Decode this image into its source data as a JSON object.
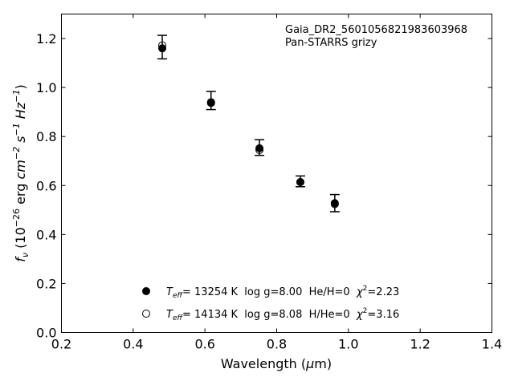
{
  "chart_data": {
    "type": "scatter",
    "xlabel": {
      "main": "Wavelength (",
      "mu": "μ",
      "unit": "m)"
    },
    "ylabel": {
      "f": "f",
      "nu": "ν",
      "pre": " (10",
      "e1": "−26",
      "mid": " erg ",
      "cm": "cm",
      "e2": "−2",
      "s": " s",
      "e3": "−1",
      "hz": " Hz",
      "e4": "−1",
      "close": ")"
    },
    "xlim": [
      0.2,
      1.4
    ],
    "ylim": [
      0.0,
      1.3
    ],
    "xticks": [
      0.2,
      0.4,
      0.6,
      0.8,
      1.0,
      1.2,
      1.4
    ],
    "xtick_labels": [
      "0.2",
      "0.4",
      "0.6",
      "0.8",
      "1.0",
      "1.2",
      "1.4"
    ],
    "yticks": [
      0.0,
      0.2,
      0.4,
      0.6,
      0.8,
      1.0,
      1.2
    ],
    "ytick_labels": [
      "0.0",
      "0.2",
      "0.4",
      "0.6",
      "0.8",
      "1.0",
      "1.2"
    ],
    "annotation": {
      "line1": "Gaia_DR2_5601056821983603968",
      "line2": "Pan-STARRS grizy"
    },
    "observed": {
      "x": [
        0.481,
        0.617,
        0.752,
        0.866,
        0.962
      ],
      "y": [
        1.165,
        0.947,
        0.755,
        0.617,
        0.528
      ],
      "err": [
        0.048,
        0.037,
        0.032,
        0.022,
        0.035
      ]
    },
    "models": [
      {
        "marker": "filled",
        "x": [
          0.481,
          0.617,
          0.752,
          0.866,
          0.962
        ],
        "y": [
          1.16,
          0.94,
          0.752,
          0.614,
          0.528
        ],
        "label": {
          "T": "T",
          "eff": "eff",
          "rest": "= 13254 K  log g=8.00  He/H=0  ",
          "chi": "χ",
          "sq": "2",
          "val": "=2.23"
        }
      },
      {
        "marker": "open",
        "x": [
          0.481,
          0.617,
          0.752,
          0.866,
          0.962
        ],
        "y": [
          1.172,
          0.937,
          0.745,
          0.614,
          0.524
        ],
        "label": {
          "T": "T",
          "eff": "eff",
          "rest": "= 14134 K  log g=8.08  H/He=0  ",
          "chi": "χ",
          "sq": "2",
          "val": "=3.16"
        }
      }
    ],
    "legend_position": "lower-center",
    "grid": false
  }
}
